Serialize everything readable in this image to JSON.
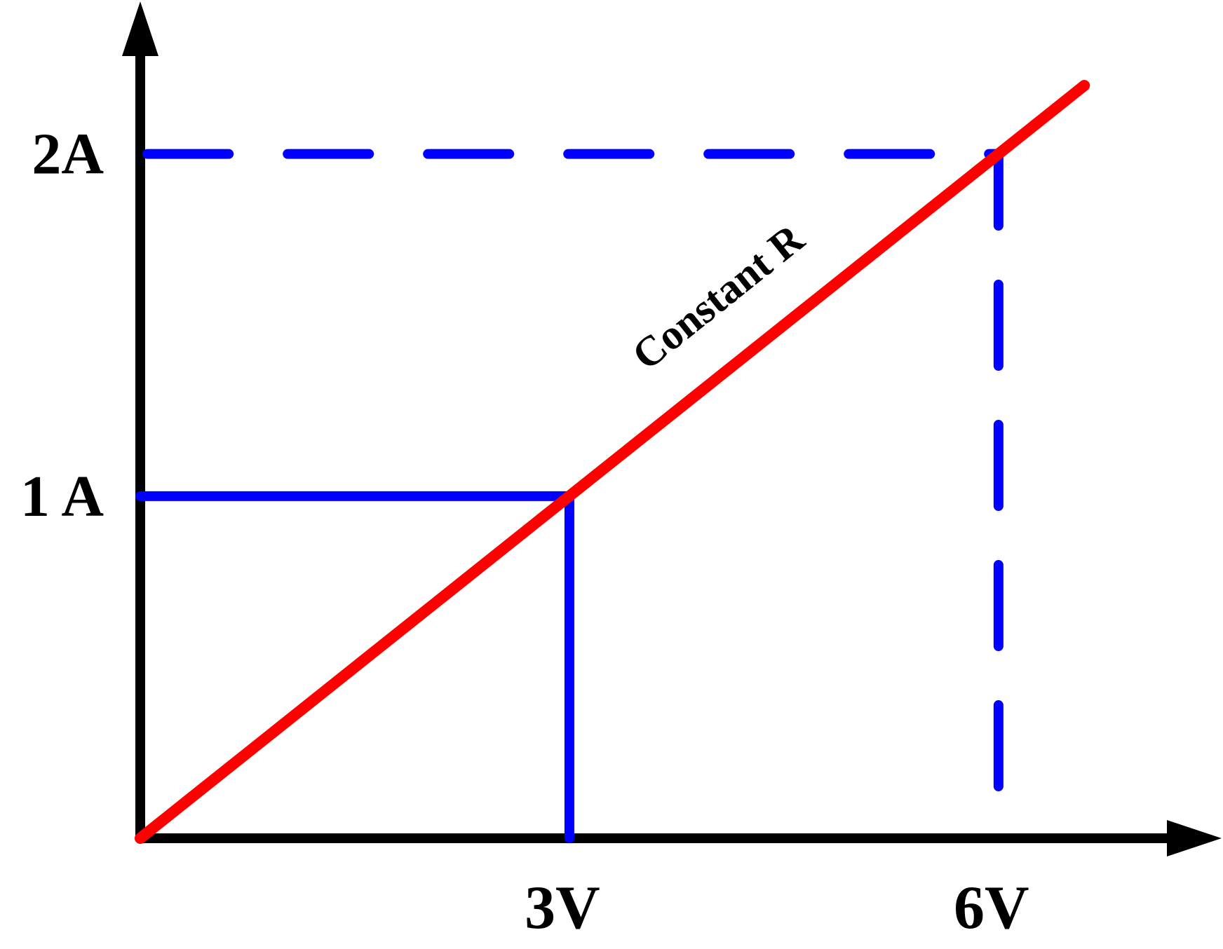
{
  "chart_data": {
    "type": "line",
    "title": "",
    "xlabel": "",
    "ylabel": "",
    "x_ticks": [
      {
        "value": 3,
        "label": "3V"
      },
      {
        "value": 6,
        "label": "6V"
      }
    ],
    "y_ticks": [
      {
        "value": 1,
        "label": "1 A"
      },
      {
        "value": 2,
        "label": "2A"
      }
    ],
    "series": [
      {
        "name": "Constant R",
        "color": "#ff0000",
        "points": [
          [
            0,
            0
          ],
          [
            6.6,
            2.2
          ]
        ]
      }
    ],
    "reference_lines": [
      {
        "style": "solid",
        "color": "#0000ff",
        "points": [
          [
            0,
            1
          ],
          [
            3,
            1
          ],
          [
            3,
            0
          ]
        ]
      },
      {
        "style": "dashed",
        "color": "#0000ff",
        "points": [
          [
            0.05,
            2
          ],
          [
            6,
            2
          ],
          [
            6,
            0.05
          ]
        ]
      }
    ],
    "annotations": [
      {
        "text": "Constant R",
        "at": [
          4.1,
          1.55
        ]
      }
    ],
    "xlim": [
      0,
      7.55
    ],
    "ylim": [
      0,
      2.45
    ],
    "grid": false,
    "axis_color": "#000000"
  }
}
